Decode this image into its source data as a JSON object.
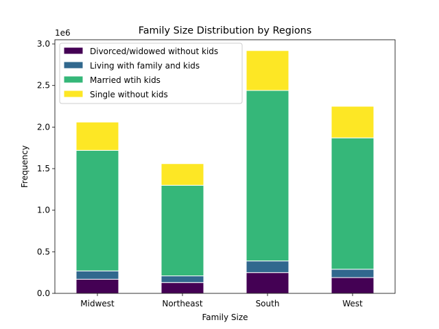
{
  "chart_data": {
    "type": "bar",
    "stacked": true,
    "title": "Family Size Distribution by Regions",
    "xlabel": "Family Size",
    "ylabel": "Frequency",
    "y_offset_text": "1e6",
    "categories": [
      "Midwest",
      "Northeast",
      "South",
      "West"
    ],
    "ylim": [
      0,
      3.05
    ],
    "yticks": [
      0.0,
      0.5,
      1.0,
      1.5,
      2.0,
      2.5,
      3.0
    ],
    "ytick_labels": [
      "0.0",
      "0.5",
      "1.0",
      "1.5",
      "2.0",
      "2.5",
      "3.0"
    ],
    "value_unit_note": "values in millions (x1e6)",
    "legend_position": "top-left",
    "grid": false,
    "series": [
      {
        "name": "Divorced/widowed without kids",
        "color": "#440154",
        "values": [
          0.17,
          0.13,
          0.25,
          0.19
        ]
      },
      {
        "name": "Living with family and kids",
        "color": "#31688e",
        "values": [
          0.1,
          0.08,
          0.14,
          0.1
        ]
      },
      {
        "name": "Married wtih kids",
        "color": "#35b779",
        "values": [
          1.45,
          1.09,
          2.05,
          1.58
        ]
      },
      {
        "name": "Single without kids",
        "color": "#fde725",
        "values": [
          0.34,
          0.26,
          0.48,
          0.38
        ]
      }
    ]
  }
}
